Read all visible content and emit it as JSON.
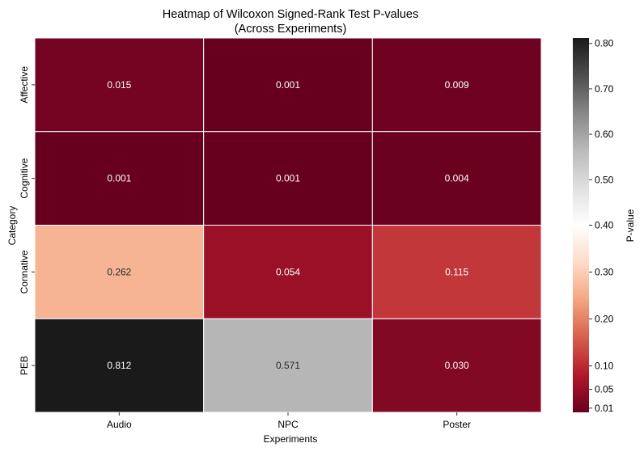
{
  "chart_data": {
    "type": "heatmap",
    "title_line1": "Heatmap of Wilcoxon Signed-Rank Test P-values",
    "title_line2": "(Across Experiments)",
    "xlabel": "Experiments",
    "ylabel": "Category",
    "colorbar_label": "P-value",
    "columns": [
      "Audio",
      "NPC",
      "Poster"
    ],
    "rows": [
      "Affective",
      "Cognitive",
      "Connative",
      "PEB"
    ],
    "values": [
      [
        0.015,
        0.001,
        0.009
      ],
      [
        0.001,
        0.001,
        0.004
      ],
      [
        0.262,
        0.054,
        0.115
      ],
      [
        0.812,
        0.571,
        0.03
      ]
    ],
    "cell_labels": [
      [
        "0.015",
        "0.001",
        "0.009"
      ],
      [
        "0.001",
        "0.001",
        "0.004"
      ],
      [
        "0.262",
        "0.054",
        "0.115"
      ],
      [
        "0.812",
        "0.571",
        "0.030"
      ]
    ],
    "colorbar_ticks": [
      {
        "value": 0.01,
        "label": "0.01"
      },
      {
        "value": 0.05,
        "label": "0.05"
      },
      {
        "value": 0.1,
        "label": "0.10"
      },
      {
        "value": 0.2,
        "label": "0.20"
      },
      {
        "value": 0.3,
        "label": "0.30"
      },
      {
        "value": 0.4,
        "label": "0.40"
      },
      {
        "value": 0.5,
        "label": "0.50"
      },
      {
        "value": 0.6,
        "label": "0.60"
      },
      {
        "value": 0.7,
        "label": "0.70"
      },
      {
        "value": 0.8,
        "label": "0.80"
      }
    ],
    "colorbar_range": [
      0.001,
      0.812
    ],
    "colorbar_center": 0.4,
    "colormap": "diverging red (low) – white (~0.40) – gray/black (high)",
    "colormap_stops": [
      "#67001f",
      "#b2182b",
      "#d6604d",
      "#f4a582",
      "#fddbc7",
      "#ffffff",
      "#e0e0e0",
      "#bababa",
      "#878787",
      "#4d4d4d",
      "#1a1a1a"
    ],
    "grid": false
  }
}
